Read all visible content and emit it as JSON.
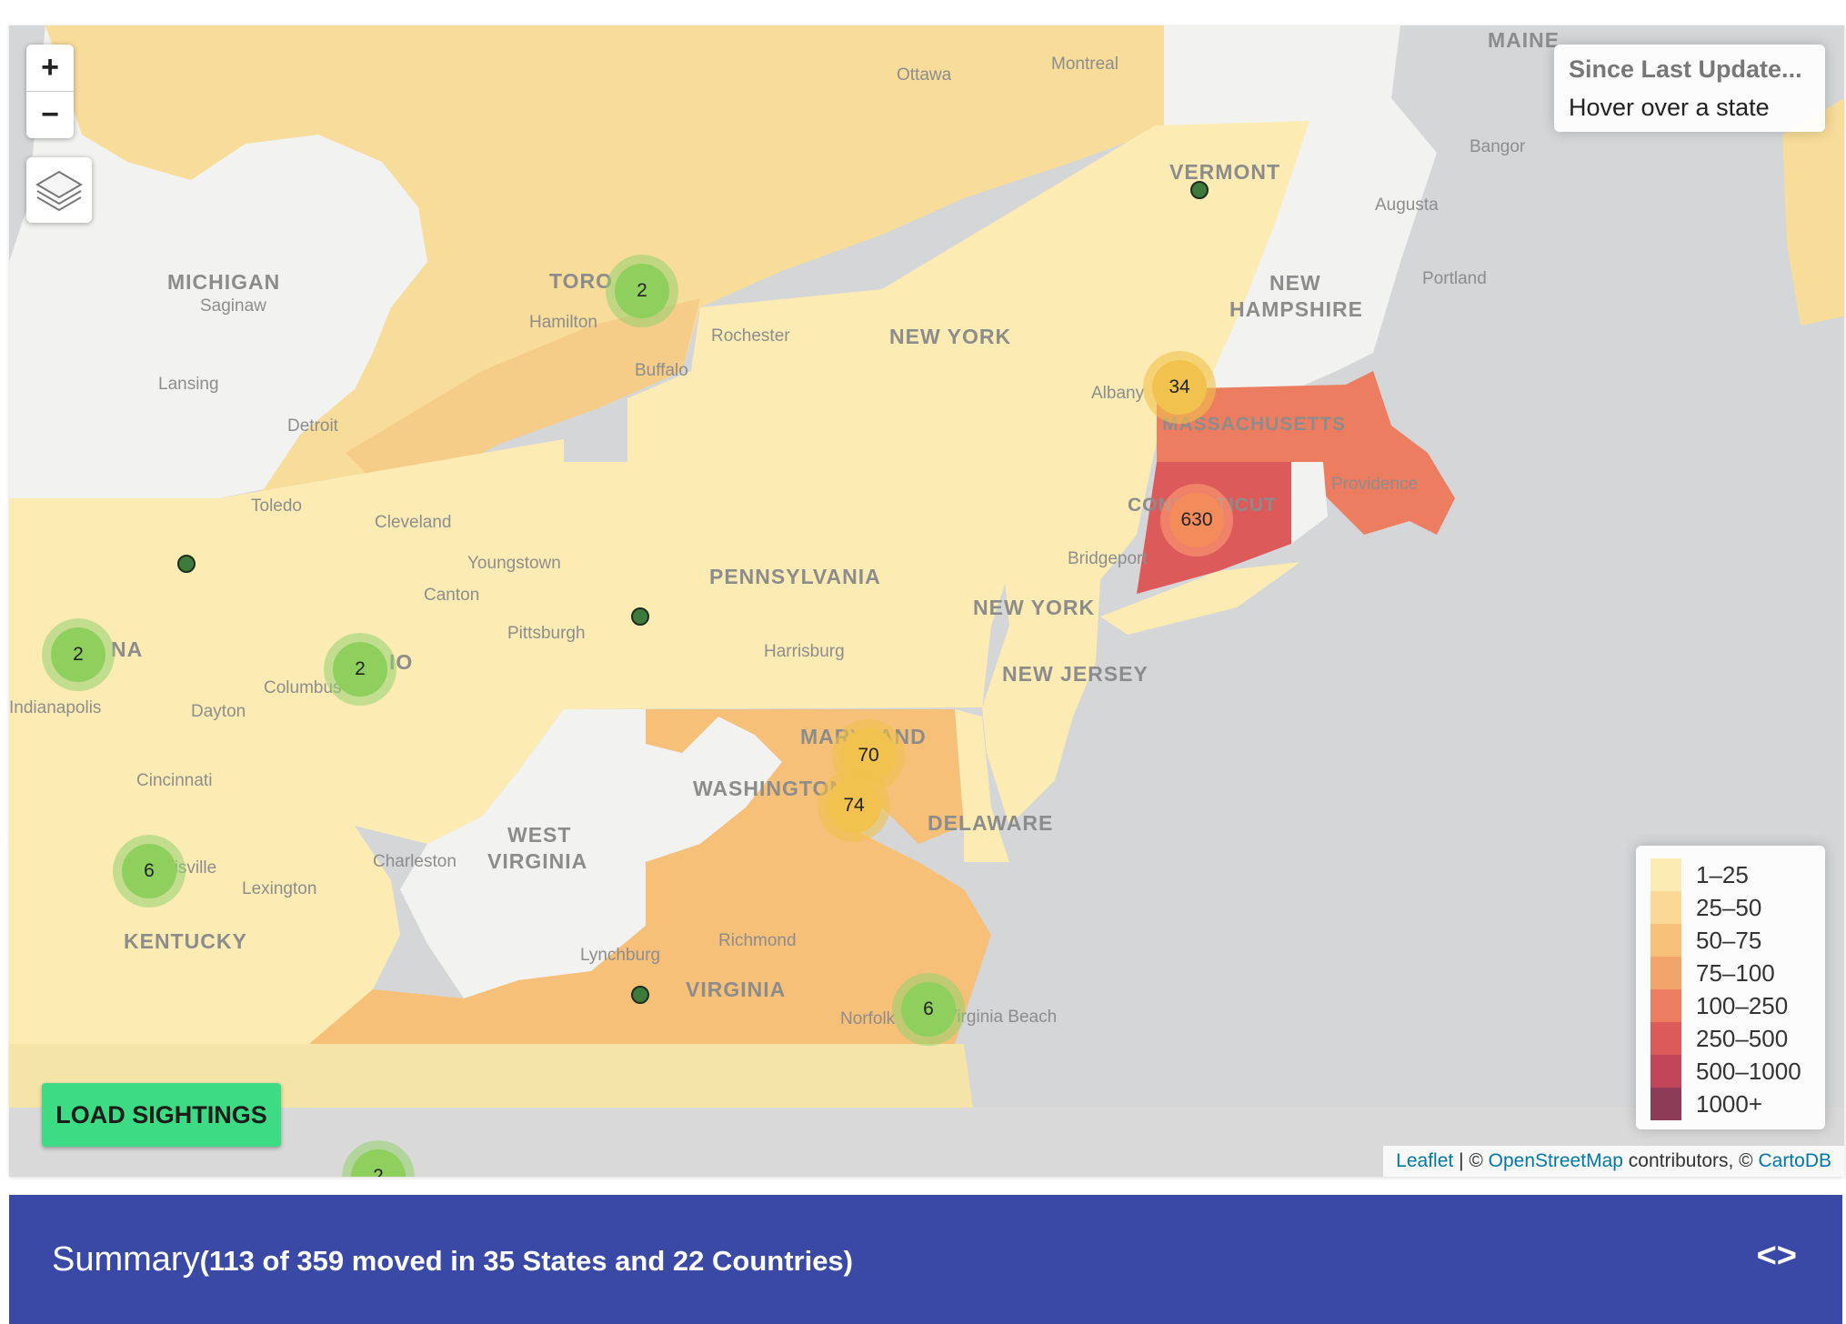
{
  "map": {
    "zoom_in": "+",
    "zoom_out": "−",
    "layers_icon": "layers-icon",
    "info": {
      "title": "Since Last Update...",
      "subtitle": "Hover over a state"
    },
    "legend": [
      {
        "label": "1–25",
        "color": "#fcecb4"
      },
      {
        "label": "25–50",
        "color": "#fad996"
      },
      {
        "label": "50–75",
        "color": "#f6c078"
      },
      {
        "label": "75–100",
        "color": "#f2a56b"
      },
      {
        "label": "100–250",
        "color": "#ec7d60"
      },
      {
        "label": "250–500",
        "color": "#dd5a5a"
      },
      {
        "label": "500–1000",
        "color": "#c2455a"
      },
      {
        "label": "1000+",
        "color": "#8e3b58"
      }
    ],
    "load_button": "LOAD SIGHTINGS",
    "attribution": {
      "leaflet": "Leaflet",
      "sep1": " | © ",
      "osm": "OpenStreetMap",
      "mid": " contributors, © ",
      "carto": "CartoDB"
    },
    "clusters": [
      "2",
      "34",
      "630",
      "2",
      "2",
      "70",
      "74",
      "6",
      "6",
      "2"
    ],
    "state_labels": [
      "MICHIGAN",
      "NEW YORK",
      "VERMONT",
      "NEW",
      "HAMPSHIRE",
      "MAINE",
      "MASSACHUSETTS",
      "CONNECTICUT",
      "PENNSYLVANIA",
      "NEW YORK",
      "NEW JERSEY",
      "MARYLAND",
      "WASHINGTON",
      "DELAWARE",
      "WEST",
      "VIRGINIA",
      "VIRGINIA",
      "KENTUCKY",
      "NA",
      "IO",
      "TORO"
    ],
    "city_labels": [
      "Ottawa",
      "Montreal",
      "Bangor",
      "Augusta",
      "Portland",
      "Saginaw",
      "Lansing",
      "Detroit",
      "Hamilton",
      "Rochester",
      "Buffalo",
      "Albany",
      "Providence",
      "Toledo",
      "Cleveland",
      "Youngstown",
      "Canton",
      "Pittsburgh",
      "Bridgeport",
      "Harrisburg",
      "Columbus",
      "Dayton",
      "Indianapolis",
      "Cincinnati",
      "Charleston",
      "Lexington",
      "Louisville",
      "Richmond",
      "Lynchburg",
      "Norfolk",
      "Virginia Beach"
    ]
  },
  "summary": {
    "label": "Summary",
    "detail": "(113 of 359 moved in 35 States and 22 Countries)",
    "code_icon": "code-icon",
    "code_glyph": "<>"
  }
}
